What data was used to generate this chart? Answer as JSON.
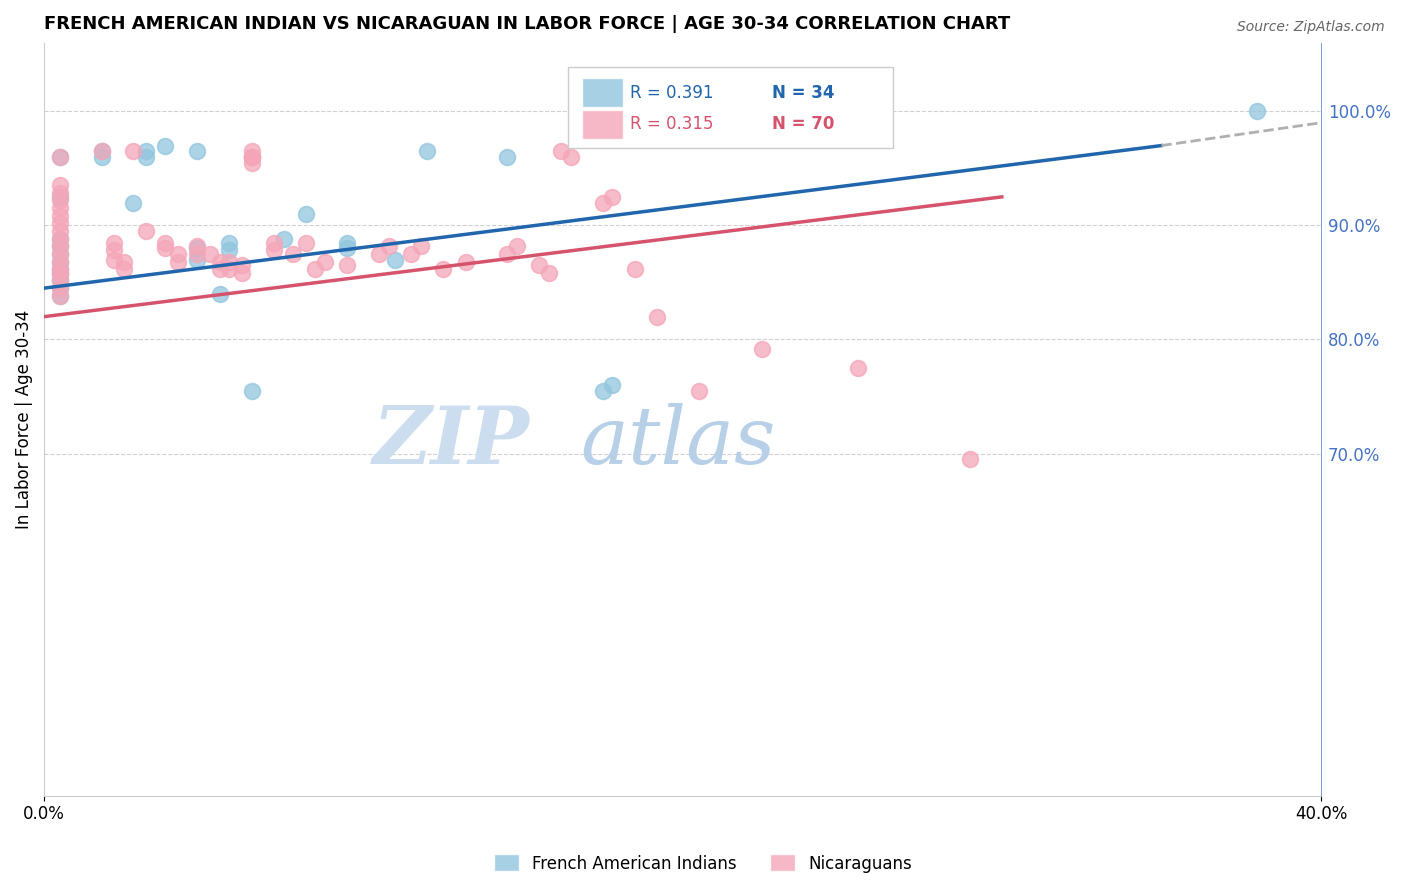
{
  "title": "FRENCH AMERICAN INDIAN VS NICARAGUAN IN LABOR FORCE | AGE 30-34 CORRELATION CHART",
  "source": "Source: ZipAtlas.com",
  "ylabel": "In Labor Force | Age 30-34",
  "blue_label": "French American Indians",
  "pink_label": "Nicaraguans",
  "blue_R": "R = 0.391",
  "blue_N": "N = 34",
  "pink_R": "R = 0.315",
  "pink_N": "N = 70",
  "blue_color": "#92c5de",
  "pink_color": "#f4a6b8",
  "blue_line_color": "#2166ac",
  "pink_line_color": "#d6536d",
  "dash_color": "#b0b0b0",
  "watermark_zip_color": "#c8dff5",
  "watermark_atlas_color": "#b8cfe8",
  "grid_color": "#d0d0d0",
  "right_axis_color": "#4472c4",
  "xlim": [
    0.0,
    0.4
  ],
  "ylim": [
    0.4,
    1.06
  ],
  "yticks": [
    0.7,
    0.8,
    0.9,
    1.0
  ],
  "ytick_labels": [
    "70.0%",
    "80.0%",
    "90.0%",
    "100.0%"
  ],
  "xtick_positions": [
    0.0,
    0.4
  ],
  "xtick_labels": [
    "0.0%",
    "40.0%"
  ],
  "blue_scatter_x": [
    0.005,
    0.005,
    0.005,
    0.005,
    0.005,
    0.005,
    0.005,
    0.005,
    0.005,
    0.005,
    0.005,
    0.018,
    0.018,
    0.028,
    0.032,
    0.032,
    0.038,
    0.048,
    0.048,
    0.048,
    0.055,
    0.058,
    0.058,
    0.065,
    0.075,
    0.082,
    0.095,
    0.095,
    0.11,
    0.12,
    0.145,
    0.175,
    0.178,
    0.38
  ],
  "blue_scatter_y": [
    0.838,
    0.845,
    0.852,
    0.857,
    0.862,
    0.868,
    0.875,
    0.882,
    0.888,
    0.925,
    0.96,
    0.96,
    0.965,
    0.92,
    0.96,
    0.965,
    0.97,
    0.87,
    0.88,
    0.965,
    0.84,
    0.878,
    0.885,
    0.755,
    0.888,
    0.91,
    0.885,
    0.88,
    0.87,
    0.965,
    0.96,
    0.755,
    0.76,
    1.0
  ],
  "pink_scatter_x": [
    0.005,
    0.005,
    0.005,
    0.005,
    0.005,
    0.005,
    0.005,
    0.005,
    0.005,
    0.005,
    0.005,
    0.005,
    0.005,
    0.005,
    0.005,
    0.005,
    0.005,
    0.018,
    0.022,
    0.022,
    0.022,
    0.025,
    0.025,
    0.028,
    0.032,
    0.038,
    0.038,
    0.042,
    0.042,
    0.048,
    0.048,
    0.052,
    0.055,
    0.055,
    0.058,
    0.058,
    0.062,
    0.062,
    0.065,
    0.065,
    0.065,
    0.065,
    0.065,
    0.072,
    0.072,
    0.078,
    0.082,
    0.085,
    0.088,
    0.095,
    0.105,
    0.108,
    0.115,
    0.118,
    0.125,
    0.132,
    0.145,
    0.148,
    0.155,
    0.158,
    0.162,
    0.165,
    0.175,
    0.178,
    0.185,
    0.192,
    0.205,
    0.225,
    0.255,
    0.29
  ],
  "pink_scatter_y": [
    0.838,
    0.845,
    0.852,
    0.858,
    0.862,
    0.868,
    0.875,
    0.882,
    0.888,
    0.895,
    0.902,
    0.908,
    0.915,
    0.922,
    0.928,
    0.935,
    0.96,
    0.965,
    0.87,
    0.878,
    0.885,
    0.862,
    0.868,
    0.965,
    0.895,
    0.88,
    0.885,
    0.868,
    0.875,
    0.875,
    0.882,
    0.875,
    0.862,
    0.868,
    0.862,
    0.868,
    0.858,
    0.865,
    0.965,
    0.96,
    0.96,
    0.96,
    0.955,
    0.878,
    0.885,
    0.875,
    0.885,
    0.862,
    0.868,
    0.865,
    0.875,
    0.882,
    0.875,
    0.882,
    0.862,
    0.868,
    0.875,
    0.882,
    0.865,
    0.858,
    0.965,
    0.96,
    0.92,
    0.925,
    0.862,
    0.82,
    0.755,
    0.792,
    0.775,
    0.695
  ]
}
